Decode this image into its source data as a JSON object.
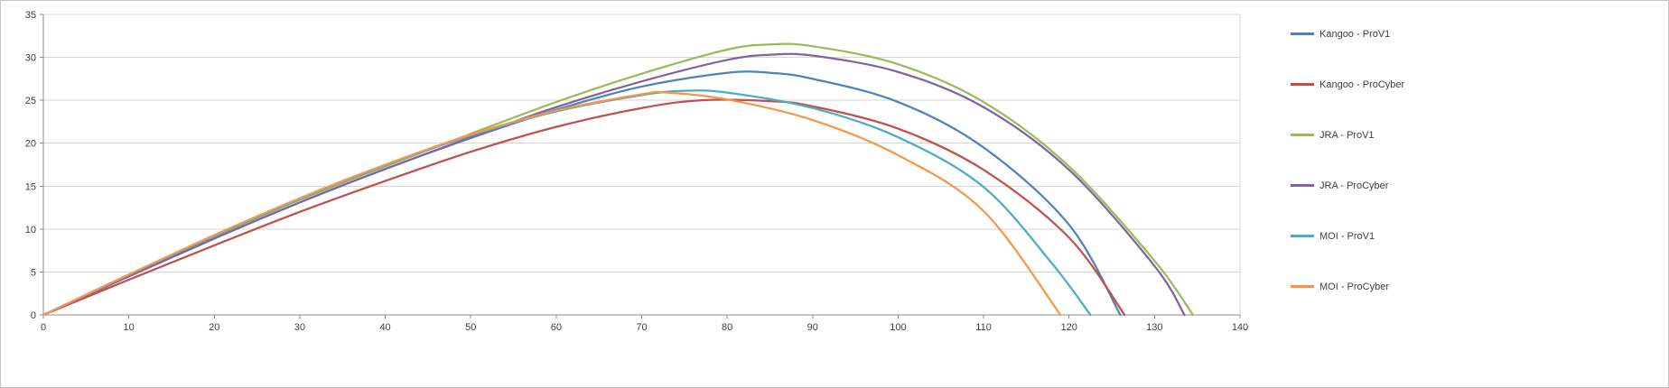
{
  "chart_data": {
    "type": "line",
    "title": "",
    "xlabel": "",
    "ylabel": "",
    "xlim": [
      0,
      140
    ],
    "ylim": [
      0,
      35
    ],
    "x_ticks": [
      0,
      10,
      20,
      30,
      40,
      50,
      60,
      70,
      80,
      90,
      100,
      110,
      120,
      130,
      140
    ],
    "y_ticks": [
      0,
      5,
      10,
      15,
      20,
      25,
      30,
      35
    ],
    "grid": "horizontal",
    "legend_position": "right",
    "gridline_color": "#d6d6d6",
    "axis_color": "#8c8c8c",
    "label_color": "#3f3f3f",
    "series": [
      {
        "name": "Kangoo - ProV1",
        "color": "#4F81BD",
        "points": [
          [
            0,
            0
          ],
          [
            10,
            4.5
          ],
          [
            20,
            8.9
          ],
          [
            30,
            13.1
          ],
          [
            40,
            17.0
          ],
          [
            50,
            20.6
          ],
          [
            60,
            23.9
          ],
          [
            70,
            26.6
          ],
          [
            80,
            28.2
          ],
          [
            85,
            28.2
          ],
          [
            90,
            27.5
          ],
          [
            100,
            24.8
          ],
          [
            110,
            19.5
          ],
          [
            120,
            10.5
          ],
          [
            126,
            0
          ]
        ]
      },
      {
        "name": "Kangoo - ProCyber",
        "color": "#C0504D",
        "points": [
          [
            0,
            0
          ],
          [
            10,
            4.1
          ],
          [
            20,
            8.1
          ],
          [
            30,
            12.0
          ],
          [
            40,
            15.6
          ],
          [
            50,
            19.0
          ],
          [
            60,
            21.9
          ],
          [
            70,
            24.1
          ],
          [
            77,
            25.0
          ],
          [
            85,
            24.9
          ],
          [
            90,
            24.3
          ],
          [
            100,
            21.7
          ],
          [
            110,
            16.9
          ],
          [
            120,
            9.0
          ],
          [
            126.5,
            0
          ]
        ]
      },
      {
        "name": "JRA - ProV1",
        "color": "#9BBB59",
        "points": [
          [
            0,
            0
          ],
          [
            10,
            4.6
          ],
          [
            20,
            9.1
          ],
          [
            30,
            13.4
          ],
          [
            40,
            17.3
          ],
          [
            50,
            21.1
          ],
          [
            60,
            24.8
          ],
          [
            70,
            28.1
          ],
          [
            80,
            30.9
          ],
          [
            85,
            31.5
          ],
          [
            90,
            31.3
          ],
          [
            100,
            29.2
          ],
          [
            110,
            24.8
          ],
          [
            120,
            17.3
          ],
          [
            130,
            6.3
          ],
          [
            134.5,
            0
          ]
        ]
      },
      {
        "name": "JRA - ProCyber",
        "color": "#8064A2",
        "points": [
          [
            0,
            0
          ],
          [
            10,
            4.5
          ],
          [
            20,
            8.9
          ],
          [
            30,
            13.1
          ],
          [
            40,
            17.0
          ],
          [
            50,
            20.7
          ],
          [
            60,
            24.2
          ],
          [
            70,
            27.2
          ],
          [
            80,
            29.7
          ],
          [
            85,
            30.3
          ],
          [
            90,
            30.2
          ],
          [
            100,
            28.3
          ],
          [
            110,
            24.2
          ],
          [
            120,
            16.9
          ],
          [
            130,
            5.7
          ],
          [
            133.5,
            0
          ]
        ]
      },
      {
        "name": "MOI - ProV1",
        "color": "#4BACC6",
        "points": [
          [
            0,
            0
          ],
          [
            10,
            4.7
          ],
          [
            20,
            9.2
          ],
          [
            30,
            13.5
          ],
          [
            40,
            17.4
          ],
          [
            50,
            20.9
          ],
          [
            60,
            23.7
          ],
          [
            70,
            25.6
          ],
          [
            75,
            26.1
          ],
          [
            80,
            25.9
          ],
          [
            90,
            24.1
          ],
          [
            100,
            20.7
          ],
          [
            110,
            14.9
          ],
          [
            118,
            6.0
          ],
          [
            122.5,
            0
          ]
        ]
      },
      {
        "name": "MOI - ProCyber",
        "color": "#F79646",
        "points": [
          [
            0,
            0
          ],
          [
            10,
            4.7
          ],
          [
            20,
            9.3
          ],
          [
            30,
            13.6
          ],
          [
            40,
            17.5
          ],
          [
            50,
            21.0
          ],
          [
            60,
            23.8
          ],
          [
            70,
            25.7
          ],
          [
            73,
            25.9
          ],
          [
            80,
            25.1
          ],
          [
            90,
            22.7
          ],
          [
            100,
            18.6
          ],
          [
            110,
            12.1
          ],
          [
            119,
            0
          ]
        ]
      }
    ]
  }
}
